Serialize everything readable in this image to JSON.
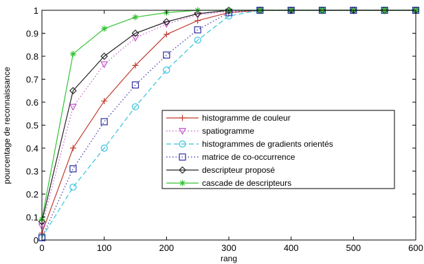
{
  "chart_data": {
    "type": "line",
    "xlabel": "rang",
    "ylabel": "pourcentage de reconnaissance",
    "xlim": [
      0,
      600
    ],
    "ylim": [
      0,
      1
    ],
    "xticks": [
      0,
      100,
      200,
      300,
      400,
      500,
      600
    ],
    "yticks": [
      0,
      0.1,
      0.2,
      0.3,
      0.4,
      0.5,
      0.6,
      0.7,
      0.8,
      0.9,
      1
    ],
    "xtick_labels": [
      "0",
      "100",
      "200",
      "300",
      "400",
      "500",
      "600"
    ],
    "ytick_labels": [
      "0",
      "0.1",
      "0.2",
      "0.3",
      "0.4",
      "0.5",
      "0.6",
      "0.7",
      "0.8",
      "0.9",
      "1"
    ],
    "grid": false,
    "legend_position": "center-right",
    "x": [
      0,
      50,
      100,
      150,
      200,
      250,
      300,
      350,
      400,
      450,
      500,
      550,
      600
    ],
    "series": [
      {
        "name": "histogramme de couleur",
        "color": "#c0392b",
        "line_style": "solid",
        "marker": "plus",
        "values": [
          0.03,
          0.4,
          0.605,
          0.76,
          0.895,
          0.955,
          0.99,
          1,
          1,
          1,
          1,
          1,
          1
        ]
      },
      {
        "name": "spatiogramme",
        "color": "#c254c8",
        "line_style": "dotted",
        "marker": "triangle-down",
        "values": [
          0.06,
          0.58,
          0.765,
          0.88,
          0.94,
          0.98,
          0.995,
          1,
          1,
          1,
          1,
          1,
          1
        ]
      },
      {
        "name": "histogrammes de gradients orientés",
        "color": "#33c2db",
        "line_style": "dashed",
        "marker": "circle",
        "values": [
          0.01,
          0.23,
          0.4,
          0.58,
          0.74,
          0.87,
          0.975,
          1,
          1,
          1,
          1,
          1,
          1
        ]
      },
      {
        "name": "matrice de co-occurrence",
        "color": "#2d2da0",
        "line_style": "dotted",
        "marker": "square",
        "values": [
          0.01,
          0.31,
          0.515,
          0.675,
          0.805,
          0.915,
          0.99,
          1,
          1,
          1,
          1,
          1,
          1
        ]
      },
      {
        "name": "descripteur proposé",
        "color": "#222222",
        "line_style": "solid",
        "marker": "diamond",
        "values": [
          0.08,
          0.65,
          0.8,
          0.9,
          0.95,
          0.985,
          1,
          1,
          1,
          1,
          1,
          1,
          1
        ]
      },
      {
        "name": "cascade de descripteurs",
        "color": "#33c233",
        "line_style": "solid",
        "marker": "star",
        "values": [
          0.09,
          0.81,
          0.92,
          0.97,
          0.99,
          1,
          1,
          1,
          1,
          1,
          1,
          1,
          1
        ]
      }
    ]
  }
}
